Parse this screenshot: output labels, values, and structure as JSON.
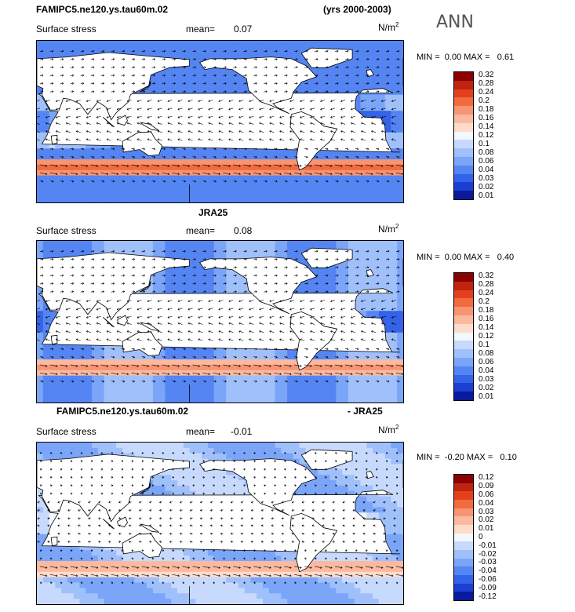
{
  "header": {
    "title_left": "FAMIPC5.ne120.ys.tau60m.02",
    "title_right": "(yrs 2000-2003)",
    "season": "ANN"
  },
  "colors": {
    "land": "#ffffff",
    "ocean_base": "#6b96f0",
    "coast": "#000000"
  },
  "chart_data": [
    {
      "type": "heatmap",
      "title": "",
      "variable": "Surface stress",
      "mean_label": "mean=",
      "mean_value": "0.07",
      "units": "N/m",
      "units_exp": "2",
      "min_label": "MIN =",
      "min_value": "0.00",
      "max_label": "MAX =",
      "max_value": "0.61",
      "levels": [
        "0.32",
        "0.28",
        "0.24",
        "0.2",
        "0.18",
        "0.16",
        "0.14",
        "0.12",
        "0.1",
        "0.08",
        "0.06",
        "0.04",
        "0.03",
        "0.02",
        "0.01"
      ],
      "level_colors": [
        "#8b0000",
        "#c0230e",
        "#e3401e",
        "#f26a3e",
        "#f79572",
        "#fbbaa0",
        "#fddccc",
        "#f3f7ff",
        "#c7dafd",
        "#a0c0fb",
        "#7aa5f8",
        "#5485f2",
        "#3462e8",
        "#1b3ed3",
        "#0a1a9c"
      ]
    },
    {
      "type": "heatmap",
      "title": "JRA25",
      "variable": "Surface stress",
      "mean_label": "mean=",
      "mean_value": "0.08",
      "units": "N/m",
      "units_exp": "2",
      "min_label": "MIN =",
      "min_value": "0.00",
      "max_label": "MAX =",
      "max_value": "0.40",
      "levels": [
        "0.32",
        "0.28",
        "0.24",
        "0.2",
        "0.18",
        "0.16",
        "0.14",
        "0.12",
        "0.1",
        "0.08",
        "0.06",
        "0.04",
        "0.03",
        "0.02",
        "0.01"
      ],
      "level_colors": [
        "#8b0000",
        "#c0230e",
        "#e3401e",
        "#f26a3e",
        "#f79572",
        "#fbbaa0",
        "#fddccc",
        "#f3f7ff",
        "#c7dafd",
        "#a0c0fb",
        "#7aa5f8",
        "#5485f2",
        "#3462e8",
        "#1b3ed3",
        "#0a1a9c"
      ]
    },
    {
      "type": "heatmap",
      "title_left": "FAMIPC5.ne120.ys.tau60m.02",
      "title_right": "- JRA25",
      "variable": "Surface stress",
      "mean_label": "mean=",
      "mean_value": "-0.01",
      "units": "N/m",
      "units_exp": "2",
      "min_label": "MIN =",
      "min_value": "-0.20",
      "max_label": "MAX =",
      "max_value": "0.10",
      "levels": [
        "0.12",
        "0.09",
        "0.06",
        "0.04",
        "0.03",
        "0.02",
        "0.01",
        "0",
        "-0.01",
        "-0.02",
        "-0.03",
        "-0.04",
        "-0.06",
        "-0.09",
        "-0.12"
      ],
      "level_colors": [
        "#8b0000",
        "#c0230e",
        "#e3401e",
        "#f26a3e",
        "#f79572",
        "#fbbaa0",
        "#fddccc",
        "#f3f7ff",
        "#c7dafd",
        "#a0c0fb",
        "#7aa5f8",
        "#5485f2",
        "#3462e8",
        "#1b3ed3",
        "#0a1a9c"
      ]
    }
  ]
}
